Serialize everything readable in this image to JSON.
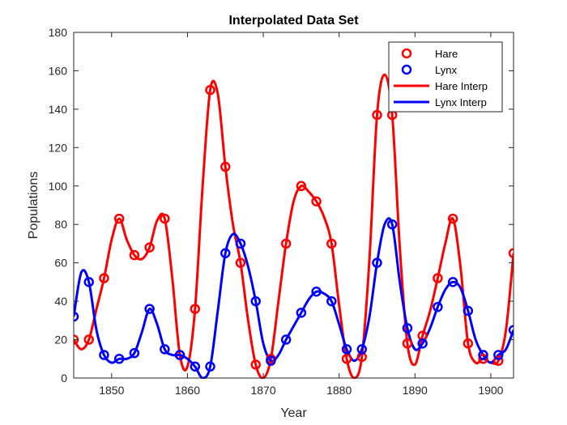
{
  "chart_data": {
    "type": "line",
    "title": "Interpolated Data Set",
    "xlabel": "Year",
    "ylabel": "Populations",
    "xlim": [
      1845,
      1903
    ],
    "ylim": [
      0,
      180
    ],
    "xticks": [
      1850,
      1860,
      1870,
      1880,
      1890,
      1900
    ],
    "yticks": [
      0,
      20,
      40,
      60,
      80,
      100,
      120,
      140,
      160,
      180
    ],
    "legend_position": "top-right",
    "grid": false,
    "legend": [
      "Hare",
      "Lynx",
      "Hare Interp",
      "Lynx Interp"
    ],
    "series": [
      {
        "name": "Hare",
        "style": "markers",
        "color": "#ff0000",
        "x": [
          1845,
          1847,
          1849,
          1851,
          1853,
          1855,
          1857,
          1859,
          1861,
          1863,
          1865,
          1867,
          1869,
          1871,
          1873,
          1875,
          1877,
          1879,
          1881,
          1883,
          1885,
          1887,
          1889,
          1891,
          1893,
          1895,
          1897,
          1899,
          1901,
          1903
        ],
        "y": [
          20,
          20,
          52,
          83,
          64,
          68,
          83,
          12,
          36,
          150,
          110,
          60,
          7,
          10,
          70,
          100,
          92,
          70,
          10,
          11,
          137,
          137,
          18,
          22,
          52,
          83,
          18,
          10,
          9,
          65
        ]
      },
      {
        "name": "Lynx",
        "style": "markers",
        "color": "#0000ff",
        "x": [
          1845,
          1847,
          1849,
          1851,
          1853,
          1855,
          1857,
          1859,
          1861,
          1863,
          1865,
          1867,
          1869,
          1871,
          1873,
          1875,
          1877,
          1879,
          1881,
          1883,
          1885,
          1887,
          1889,
          1891,
          1893,
          1895,
          1897,
          1899,
          1901,
          1903
        ],
        "y": [
          32,
          50,
          12,
          10,
          13,
          36,
          15,
          12,
          6,
          6,
          65,
          70,
          40,
          9,
          20,
          34,
          45,
          40,
          15,
          15,
          60,
          80,
          26,
          18,
          37,
          50,
          35,
          12,
          12,
          25
        ]
      },
      {
        "name": "Hare Interp",
        "style": "line",
        "color": "#ff0000",
        "x": [
          1845,
          1846,
          1847,
          1848,
          1849,
          1850,
          1851,
          1852,
          1853,
          1854,
          1855,
          1856,
          1857,
          1858,
          1859,
          1860,
          1861,
          1862,
          1863,
          1864,
          1865,
          1866,
          1867,
          1868,
          1869,
          1870,
          1871,
          1872,
          1873,
          1874,
          1875,
          1876,
          1877,
          1878,
          1879,
          1880,
          1881,
          1882,
          1883,
          1884,
          1885,
          1886,
          1887,
          1888,
          1889,
          1890,
          1891,
          1892,
          1893,
          1894,
          1895,
          1896,
          1897,
          1898,
          1899,
          1900,
          1901,
          1902,
          1903
        ],
        "y": [
          20,
          15,
          20,
          36,
          52,
          72,
          83,
          72,
          64,
          62,
          68,
          82,
          83,
          52,
          12,
          6,
          36,
          100,
          150,
          148,
          110,
          80,
          60,
          30,
          7,
          0,
          10,
          40,
          70,
          92,
          100,
          97,
          92,
          84,
          70,
          38,
          10,
          0,
          11,
          62,
          137,
          158,
          137,
          68,
          18,
          7,
          22,
          35,
          52,
          70,
          83,
          58,
          18,
          8,
          10,
          8,
          9,
          25,
          65
        ]
      },
      {
        "name": "Lynx Interp",
        "style": "line",
        "color": "#0000ff",
        "x": [
          1845,
          1846,
          1847,
          1848,
          1849,
          1850,
          1851,
          1852,
          1853,
          1854,
          1855,
          1856,
          1857,
          1858,
          1859,
          1860,
          1861,
          1862,
          1863,
          1864,
          1865,
          1866,
          1867,
          1868,
          1869,
          1870,
          1871,
          1872,
          1873,
          1874,
          1875,
          1876,
          1877,
          1878,
          1879,
          1880,
          1881,
          1882,
          1883,
          1884,
          1885,
          1886,
          1887,
          1888,
          1889,
          1890,
          1891,
          1892,
          1893,
          1894,
          1895,
          1896,
          1897,
          1898,
          1899,
          1900,
          1901,
          1902,
          1903
        ],
        "y": [
          32,
          55,
          50,
          25,
          12,
          8,
          10,
          10,
          13,
          24,
          36,
          28,
          15,
          12,
          12,
          10,
          6,
          0,
          6,
          35,
          65,
          75,
          70,
          58,
          40,
          18,
          9,
          12,
          20,
          27,
          34,
          41,
          45,
          44,
          40,
          28,
          15,
          9,
          15,
          32,
          60,
          80,
          80,
          50,
          26,
          15,
          18,
          26,
          37,
          46,
          50,
          47,
          35,
          20,
          12,
          8,
          12,
          15,
          25
        ]
      }
    ]
  }
}
